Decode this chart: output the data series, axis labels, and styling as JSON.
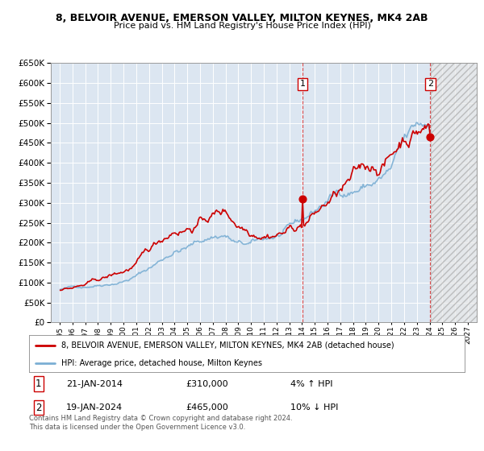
{
  "title": "8, BELVOIR AVENUE, EMERSON VALLEY, MILTON KEYNES, MK4 2AB",
  "subtitle": "Price paid vs. HM Land Registry's House Price Index (HPI)",
  "legend_line1": "8, BELVOIR AVENUE, EMERSON VALLEY, MILTON KEYNES, MK4 2AB (detached house)",
  "legend_line2": "HPI: Average price, detached house, Milton Keynes",
  "annotation1_date": "21-JAN-2014",
  "annotation1_price": "£310,000",
  "annotation1_hpi": "4% ↑ HPI",
  "annotation2_date": "19-JAN-2024",
  "annotation2_price": "£465,000",
  "annotation2_hpi": "10% ↓ HPI",
  "footer1": "Contains HM Land Registry data © Crown copyright and database right 2024.",
  "footer2": "This data is licensed under the Open Government Licence v3.0.",
  "red_color": "#cc0000",
  "blue_color": "#7bafd4",
  "background_color": "#dce6f1",
  "hatch_color": "#cccccc",
  "grid_color": "#ffffff",
  "ylim": [
    0,
    650000
  ],
  "ytick_step": 50000,
  "point1_x": 2014.05,
  "point1_y": 310000,
  "point2_x": 2024.05,
  "point2_y": 465000,
  "hatch_start": 2024.1,
  "xlim_left": 1994.3,
  "xlim_right": 2027.7,
  "xtick_years": [
    1995,
    1996,
    1997,
    1998,
    1999,
    2000,
    2001,
    2002,
    2003,
    2004,
    2005,
    2006,
    2007,
    2008,
    2009,
    2010,
    2011,
    2012,
    2013,
    2014,
    2015,
    2016,
    2017,
    2018,
    2019,
    2020,
    2021,
    2022,
    2023,
    2024,
    2025,
    2026,
    2027
  ]
}
